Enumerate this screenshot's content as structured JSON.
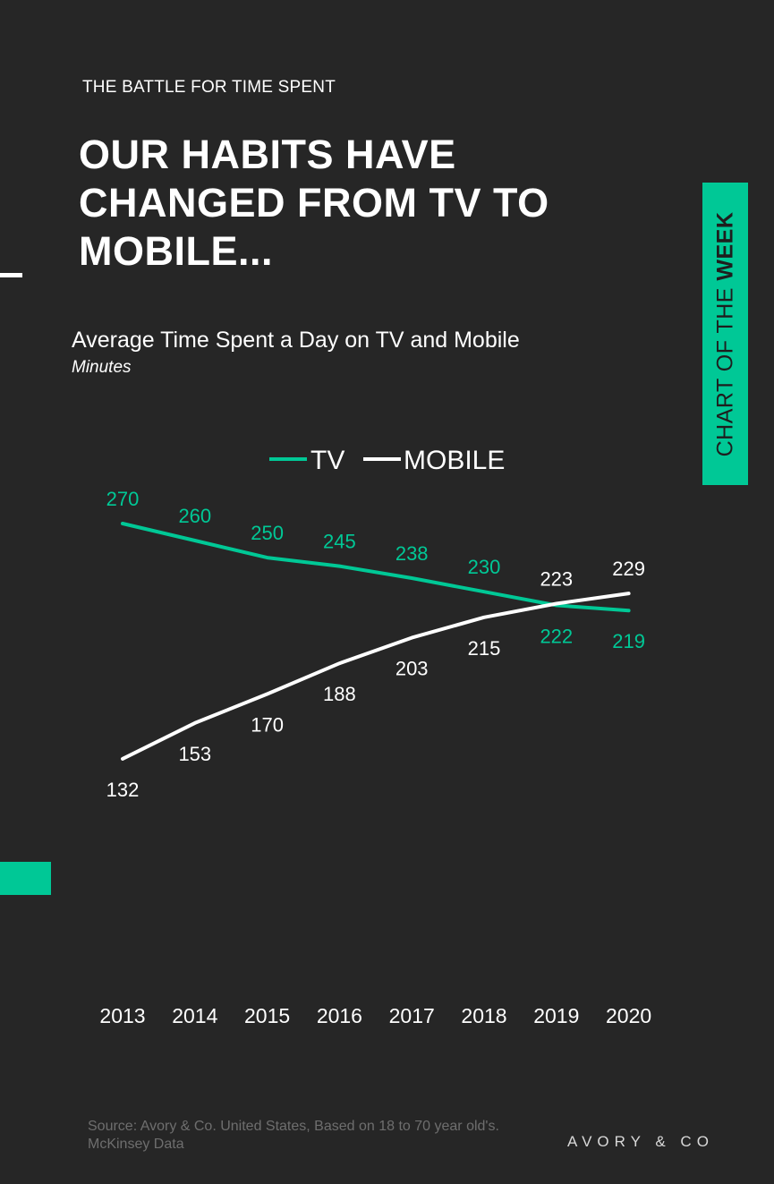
{
  "eyebrow": "THE BATTLE FOR TIME SPENT",
  "headline": "OUR HABITS HAVE CHANGED FROM TV TO MOBILE...",
  "tag": {
    "prefix": "CHART OF THE ",
    "bold": "WEEK"
  },
  "colors": {
    "background": "#262626",
    "accent": "#00c896",
    "mobile": "#ffffff"
  },
  "chart_data": {
    "type": "line",
    "title": "Average Time Spent a Day on TV and Mobile",
    "subtitle": "Minutes",
    "x": [
      "2013",
      "2014",
      "2015",
      "2016",
      "2017",
      "2018",
      "2019",
      "2020"
    ],
    "series": [
      {
        "name": "TV",
        "color": "#00c896",
        "values": [
          270,
          260,
          250,
          245,
          238,
          230,
          222,
          219
        ]
      },
      {
        "name": "MOBILE",
        "color": "#ffffff",
        "values": [
          132,
          153,
          170,
          188,
          203,
          215,
          223,
          229
        ]
      }
    ],
    "legend_position": "top-center",
    "grid": false
  },
  "footer": {
    "source": "Source: Avory & Co.  United States, Based on 18 to 70 year old's. McKinsey Data",
    "brand": "AVORY & CO"
  }
}
